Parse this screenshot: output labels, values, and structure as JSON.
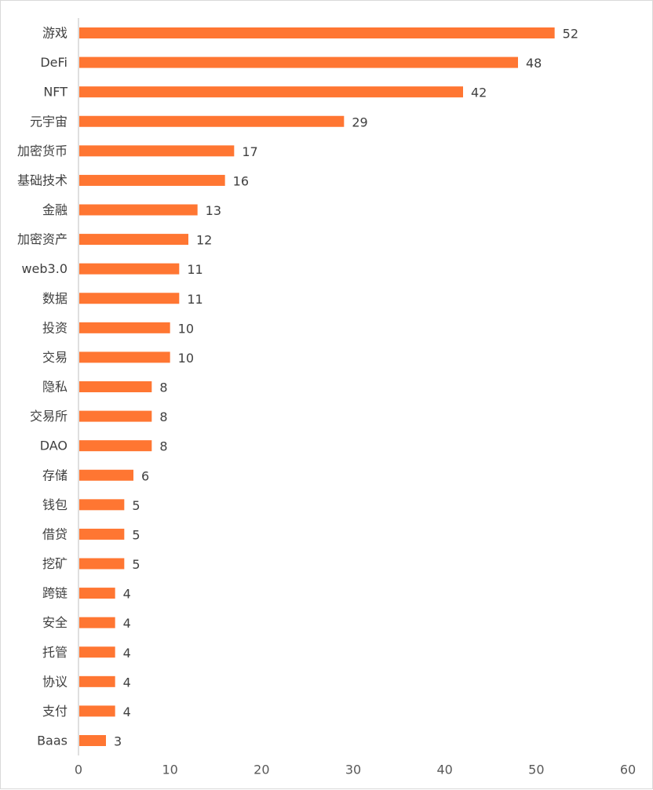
{
  "chart_data": {
    "type": "bar",
    "orientation": "horizontal",
    "categories": [
      "游戏",
      "DeFi",
      "NFT",
      "元宇宙",
      "加密货币",
      "基础技术",
      "金融",
      "加密资产",
      "web3.0",
      "数据",
      "投资",
      "交易",
      "隐私",
      "交易所",
      "DAO",
      "存储",
      "钱包",
      "借贷",
      "挖矿",
      "跨链",
      "安全",
      "托管",
      "协议",
      "支付",
      "Baas"
    ],
    "values": [
      52,
      48,
      42,
      29,
      17,
      16,
      13,
      12,
      11,
      11,
      10,
      10,
      8,
      8,
      8,
      6,
      5,
      5,
      5,
      4,
      4,
      4,
      4,
      4,
      3
    ],
    "xlim": [
      0,
      60
    ],
    "xticks": [
      "0",
      "10",
      "20",
      "30",
      "40",
      "50",
      "60"
    ],
    "data_labels": true,
    "grid": false,
    "legend": "none",
    "bar_color": "#FF7632"
  }
}
